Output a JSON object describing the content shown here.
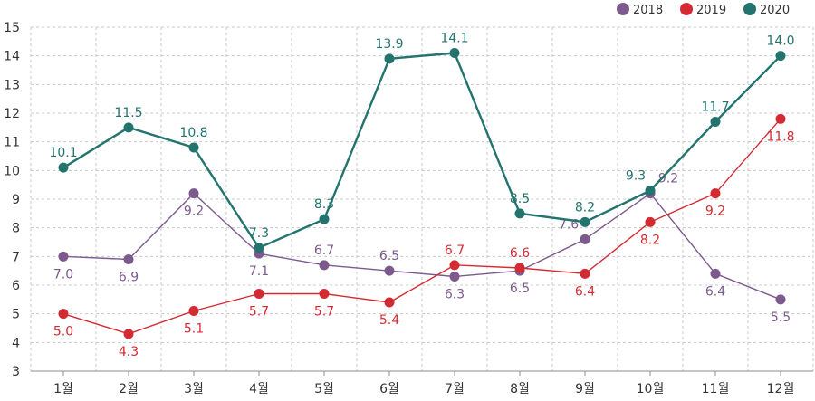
{
  "chart_data": {
    "type": "line",
    "categories": [
      "1월",
      "2월",
      "3월",
      "4월",
      "5월",
      "6월",
      "7월",
      "8월",
      "9월",
      "10월",
      "11월",
      "12월"
    ],
    "ylim": [
      3,
      15
    ],
    "yticks": [
      "3",
      "4",
      "5",
      "6",
      "7",
      "8",
      "9",
      "10",
      "11",
      "12",
      "13",
      "14",
      "15"
    ],
    "grid": true,
    "legend_position": "top-right",
    "series": [
      {
        "name": "2018",
        "color": "#7d5a8e",
        "values": [
          7.0,
          6.9,
          9.2,
          7.1,
          6.7,
          6.5,
          6.3,
          6.5,
          7.6,
          9.2,
          6.4,
          5.5
        ],
        "labels": [
          "7.0",
          "6.9",
          "9.2",
          "7.1",
          "6.7",
          "6.5",
          "6.3",
          "6.5",
          "7.6",
          "9.2",
          "6.4",
          "5.5"
        ]
      },
      {
        "name": "2019",
        "color": "#d42b32",
        "values": [
          5.0,
          4.3,
          5.1,
          5.7,
          5.7,
          5.4,
          6.7,
          6.6,
          6.4,
          8.2,
          9.2,
          11.8
        ],
        "labels": [
          "5.0",
          "4.3",
          "5.1",
          "5.7",
          "5.7",
          "5.4",
          "6.7",
          "6.6",
          "6.4",
          "8.2",
          "9.2",
          "11.8"
        ]
      },
      {
        "name": "2020",
        "color": "#23736e",
        "values": [
          10.1,
          11.5,
          10.8,
          7.3,
          8.3,
          13.9,
          14.1,
          8.5,
          8.2,
          9.3,
          11.7,
          14.0
        ],
        "labels": [
          "10.1",
          "11.5",
          "10.8",
          "7.3",
          "8.3",
          "13.9",
          "14.1",
          "8.5",
          "8.2",
          "9.3",
          "11.7",
          "14.0"
        ]
      }
    ]
  }
}
